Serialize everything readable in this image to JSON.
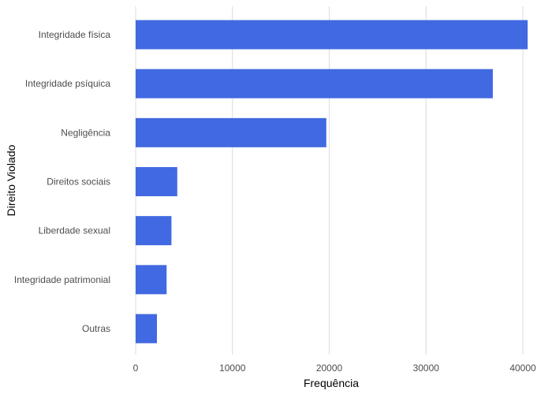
{
  "chart_data": {
    "type": "bar",
    "orientation": "horizontal",
    "categories": [
      "Integridade física",
      "Integridade psíquica",
      "Negligência",
      "Direitos sociais",
      "Liberdade sexual",
      "Integridade patrimonial",
      "Outras"
    ],
    "values": [
      40500,
      36900,
      19700,
      4300,
      3700,
      3200,
      2200
    ],
    "xlabel": "Frequência",
    "ylabel": "Direito Violado",
    "xlim": [
      0,
      41000
    ],
    "x_ticks": [
      0,
      10000,
      20000,
      30000,
      40000
    ],
    "x_tick_labels": [
      "0",
      "10000",
      "20000",
      "30000",
      "40000"
    ],
    "grid": "vertical",
    "bar_color": "#4169E1"
  }
}
